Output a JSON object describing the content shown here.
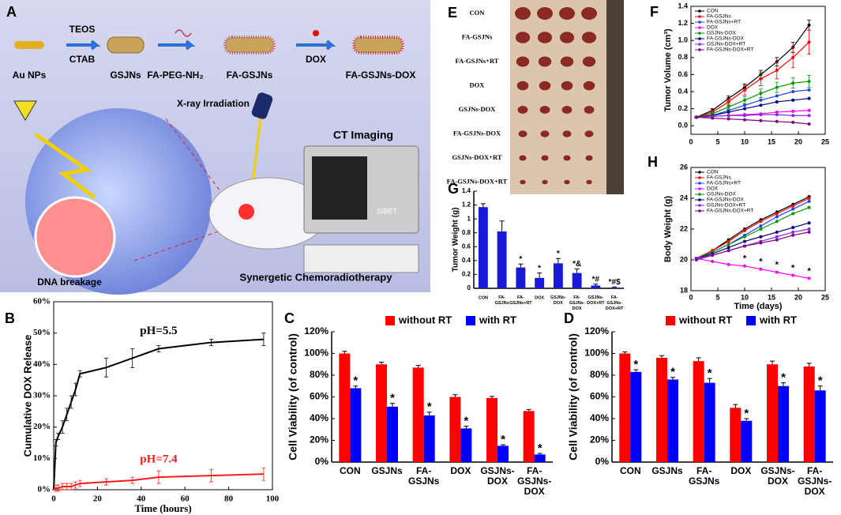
{
  "panel_labels": [
    "A",
    "B",
    "C",
    "D",
    "E",
    "F",
    "G",
    "H"
  ],
  "schematic": {
    "au_nps": "Au NPs",
    "teos": "TEOS",
    "ctab": "CTAB",
    "gsjns": "GSJNs",
    "fa_peg": "FA-PEG-NH₂",
    "fa_gsjns": "FA-GSJNs",
    "dox": "DOX",
    "fa_gsjns_dox": "FA-GSJNs-DOX",
    "xray": "X-ray Irradiation",
    "ct": "CT Imaging",
    "sibet": "SIBET",
    "dna": "DNA breakage",
    "therapy": "Synergetic Chemoradiotherapy"
  },
  "photo": {
    "groups": [
      "CON",
      "FA-GSJNs",
      "FA-GSJNs+RT",
      "DOX",
      "GSJNs-DOX",
      "FA-GSJNs-DOX",
      "GSJNs-DOX+RT",
      "FA-GSJNs-DOX+RT"
    ]
  },
  "chart_data": [
    {
      "type": "line",
      "x_label": "Time (hours)",
      "y_label": "Cumulative DOX Release",
      "markers": false,
      "xlim": [
        0,
        100
      ],
      "xticks": [
        0,
        20,
        40,
        60,
        80,
        100
      ],
      "ylim": [
        0,
        60
      ],
      "yticks": [
        {
          "value": 0,
          "label": "0%"
        },
        {
          "value": 10,
          "label": "10%"
        },
        {
          "value": 20,
          "label": "20%"
        },
        {
          "value": 30,
          "label": "30%"
        },
        {
          "value": 40,
          "label": "40%"
        },
        {
          "value": 50,
          "label": "50%"
        },
        {
          "value": 60,
          "label": "60%"
        }
      ],
      "x": [
        0,
        1,
        2,
        4,
        6,
        8,
        10,
        12,
        24,
        36,
        48,
        72,
        96
      ],
      "series": [
        {
          "name": "pH=5.5",
          "color": "#000000",
          "values": [
            0,
            15,
            17,
            20,
            24,
            28,
            32,
            37,
            39,
            42,
            45,
            47,
            48
          ],
          "errors": [
            0,
            1,
            1,
            2,
            2,
            2,
            2,
            1,
            3,
            3,
            1,
            1,
            2
          ]
        },
        {
          "name": "pH=7.4",
          "color": "#ff1a1a",
          "values": [
            0,
            0.5,
            0.5,
            1,
            1,
            1,
            1.5,
            2,
            2.5,
            3,
            4,
            4.5,
            5
          ],
          "errors": [
            0,
            1,
            1,
            1,
            1,
            1,
            1,
            1,
            1,
            1,
            2,
            2,
            2
          ]
        }
      ]
    },
    {
      "type": "bar",
      "y_label": "Cell Viability (of control)",
      "legend": "top",
      "categories": [
        "CON",
        "GSJNs",
        "FA-GSJNs",
        "DOX",
        "GSJNs-DOX",
        "FA-GSJNs-DOX"
      ],
      "ylim": [
        0,
        120
      ],
      "yticks": [
        {
          "value": 0,
          "label": "0%"
        },
        {
          "value": 20,
          "label": "20%"
        },
        {
          "value": 40,
          "label": "40%"
        },
        {
          "value": 60,
          "label": "60%"
        },
        {
          "value": 80,
          "label": "80%"
        },
        {
          "value": 100,
          "label": "100%"
        },
        {
          "value": 120,
          "label": "120%"
        }
      ],
      "series": [
        {
          "name": "without RT",
          "color": "#ff0000",
          "values": [
            100,
            90,
            87,
            60,
            59,
            47
          ],
          "errors": [
            2,
            2,
            2,
            2,
            1.5,
            1.5
          ]
        },
        {
          "name": "with RT",
          "color": "#0000ff",
          "values": [
            68,
            51,
            43,
            31,
            15,
            7
          ],
          "errors": [
            2,
            3,
            3,
            2,
            1,
            1
          ]
        }
      ],
      "annotations": [
        "*",
        "*",
        "*",
        "*",
        "*",
        "*"
      ]
    },
    {
      "type": "bar",
      "y_label": "Cell Viability (of control)",
      "legend": "top",
      "categories": [
        "CON",
        "GSJNs",
        "FA-GSJNs",
        "DOX",
        "GSJNs-DOX",
        "FA-GSJNs-DOX"
      ],
      "ylim": [
        0,
        120
      ],
      "yticks": [
        {
          "value": 0,
          "label": "0%"
        },
        {
          "value": 20,
          "label": "20%"
        },
        {
          "value": 40,
          "label": "40%"
        },
        {
          "value": 60,
          "label": "60%"
        },
        {
          "value": 80,
          "label": "80%"
        },
        {
          "value": 100,
          "label": "100%"
        },
        {
          "value": 120,
          "label": "120%"
        }
      ],
      "series": [
        {
          "name": "without RT",
          "color": "#ff0000",
          "values": [
            100,
            96,
            93,
            50,
            90,
            88
          ],
          "errors": [
            1.5,
            2,
            3,
            3,
            3,
            3
          ]
        },
        {
          "name": "with RT",
          "color": "#0000ff",
          "values": [
            83,
            76,
            73,
            38,
            70,
            66
          ],
          "errors": [
            2,
            2,
            4,
            2,
            3,
            4
          ]
        }
      ],
      "annotations": [
        "*",
        "*",
        "*",
        "*",
        "*",
        "*"
      ]
    },
    {
      "type": "line",
      "y_label": "Tumor Volume (cm³)",
      "legend": "upper left",
      "markers": true,
      "xlim": [
        0,
        25
      ],
      "xticks": [
        0,
        5,
        10,
        15,
        20,
        25
      ],
      "ylim": [
        -0.1,
        1.4
      ],
      "yticks": [
        {
          "value": 0,
          "label": "0.0"
        },
        0.2,
        0.4,
        0.6,
        0.8,
        {
          "value": 1,
          "label": "1.0"
        },
        1.2,
        1.4
      ],
      "x": [
        1,
        4,
        7,
        10,
        13,
        16,
        19,
        22
      ],
      "series": [
        {
          "name": "CON",
          "color": "#000000",
          "values": [
            0.1,
            0.18,
            0.32,
            0.45,
            0.6,
            0.75,
            0.92,
            1.18
          ],
          "errors": [
            0.01,
            0.02,
            0.03,
            0.04,
            0.05,
            0.05,
            0.06,
            0.06
          ]
        },
        {
          "name": "FA-GSJNs",
          "color": "#ff0000",
          "values": [
            0.1,
            0.16,
            0.28,
            0.42,
            0.55,
            0.65,
            0.8,
            0.98
          ],
          "errors": [
            0.01,
            0.02,
            0.04,
            0.06,
            0.08,
            0.1,
            0.12,
            0.14
          ]
        },
        {
          "name": "FA-GSJNs+RT",
          "color": "#2040ff",
          "values": [
            0.1,
            0.12,
            0.18,
            0.24,
            0.3,
            0.35,
            0.4,
            0.42
          ]
        },
        {
          "name": "DOX",
          "color": "#ff00ff",
          "values": [
            0.1,
            0.11,
            0.12,
            0.13,
            0.14,
            0.16,
            0.17,
            0.18
          ]
        },
        {
          "name": "GSJNs-DOX",
          "color": "#009900",
          "values": [
            0.1,
            0.14,
            0.22,
            0.3,
            0.38,
            0.45,
            0.5,
            0.52
          ],
          "errors": [
            0.01,
            0.02,
            0.03,
            0.04,
            0.05,
            0.06,
            0.06,
            0.07
          ]
        },
        {
          "name": "FA-GSJNs-DOX",
          "color": "#000080",
          "values": [
            0.1,
            0.12,
            0.16,
            0.2,
            0.24,
            0.28,
            0.3,
            0.32
          ]
        },
        {
          "name": "GSJNs-DOX+RT",
          "color": "#8a2be2",
          "values": [
            0.1,
            0.11,
            0.12,
            0.12,
            0.13,
            0.13,
            0.12,
            0.12
          ]
        },
        {
          "name": "FA-GSJNs-DOX+RT",
          "color": "#800080",
          "values": [
            0.1,
            0.09,
            0.08,
            0.07,
            0.06,
            0.05,
            0.04,
            0.02
          ]
        }
      ]
    },
    {
      "type": "bar",
      "y_label": "Tumor Weight (g)",
      "categories": [
        "CON",
        "FA-GSJNs",
        "FA-GSJNs+RT",
        "DOX",
        "GSJNs-DOX",
        "FA-GSJNs-DOX",
        "GSJNs-DOX+RT",
        "FA-GSJNs-DOX+RT"
      ],
      "ylim": [
        0,
        1.4
      ],
      "yticks": [
        0,
        0.2,
        0.4,
        0.6,
        0.8,
        1,
        1.2,
        1.4
      ],
      "series": [
        {
          "color": "#1a1ad6",
          "values": [
            1.17,
            0.82,
            0.3,
            0.15,
            0.36,
            0.22,
            0.04,
            0.01
          ],
          "errors": [
            0.05,
            0.15,
            0.05,
            0.07,
            0.07,
            0.06,
            0.02,
            0.01
          ]
        }
      ],
      "annotations": [
        null,
        null,
        "*",
        "*",
        "*",
        "*&",
        "*#",
        "*#$"
      ]
    },
    {
      "type": "line",
      "x_label": "Time (days)",
      "y_label": "Body Weight (g)",
      "legend": "upper left",
      "markers": true,
      "xlim": [
        0,
        25
      ],
      "xticks": [
        0,
        5,
        10,
        15,
        20,
        25
      ],
      "ylim": [
        18,
        26
      ],
      "yticks": [
        18,
        20,
        22,
        24,
        26
      ],
      "x": [
        1,
        4,
        7,
        10,
        13,
        16,
        19,
        22
      ],
      "series": [
        {
          "name": "CON",
          "color": "#000000",
          "values": [
            20.1,
            20.6,
            21.3,
            22.0,
            22.6,
            23.1,
            23.6,
            24.1
          ]
        },
        {
          "name": "FA-GSJNs",
          "color": "#ff0000",
          "values": [
            20.1,
            20.6,
            21.2,
            21.9,
            22.5,
            23.0,
            23.5,
            24.0
          ]
        },
        {
          "name": "FA-GSJNs+RT",
          "color": "#2040ff",
          "values": [
            20.1,
            20.5,
            21.0,
            21.6,
            22.2,
            22.8,
            23.3,
            23.8
          ]
        },
        {
          "name": "DOX",
          "color": "#ff00ff",
          "values": [
            20.1,
            19.9,
            19.7,
            19.6,
            19.4,
            19.2,
            19.0,
            18.8
          ]
        },
        {
          "name": "GSJNs-DOX",
          "color": "#009900",
          "values": [
            20.1,
            20.5,
            21.0,
            21.5,
            22.0,
            22.5,
            23.0,
            23.4
          ]
        },
        {
          "name": "FA-GSJNs-DOX",
          "color": "#000080",
          "values": [
            20.1,
            20.4,
            20.8,
            21.2,
            21.5,
            21.8,
            22.1,
            22.4
          ]
        },
        {
          "name": "GSJNs-DOX+RT",
          "color": "#8a2be2",
          "values": [
            20.1,
            20.3,
            20.6,
            20.9,
            21.2,
            21.5,
            21.8,
            22.0
          ]
        },
        {
          "name": "FA-GSJNs-DOX+RT",
          "color": "#800080",
          "values": [
            20.0,
            20.3,
            20.6,
            20.9,
            21.1,
            21.3,
            21.6,
            21.8
          ]
        }
      ],
      "annotations": [
        null,
        null,
        null,
        "*",
        "*",
        "*",
        "*",
        "*"
      ]
    }
  ]
}
